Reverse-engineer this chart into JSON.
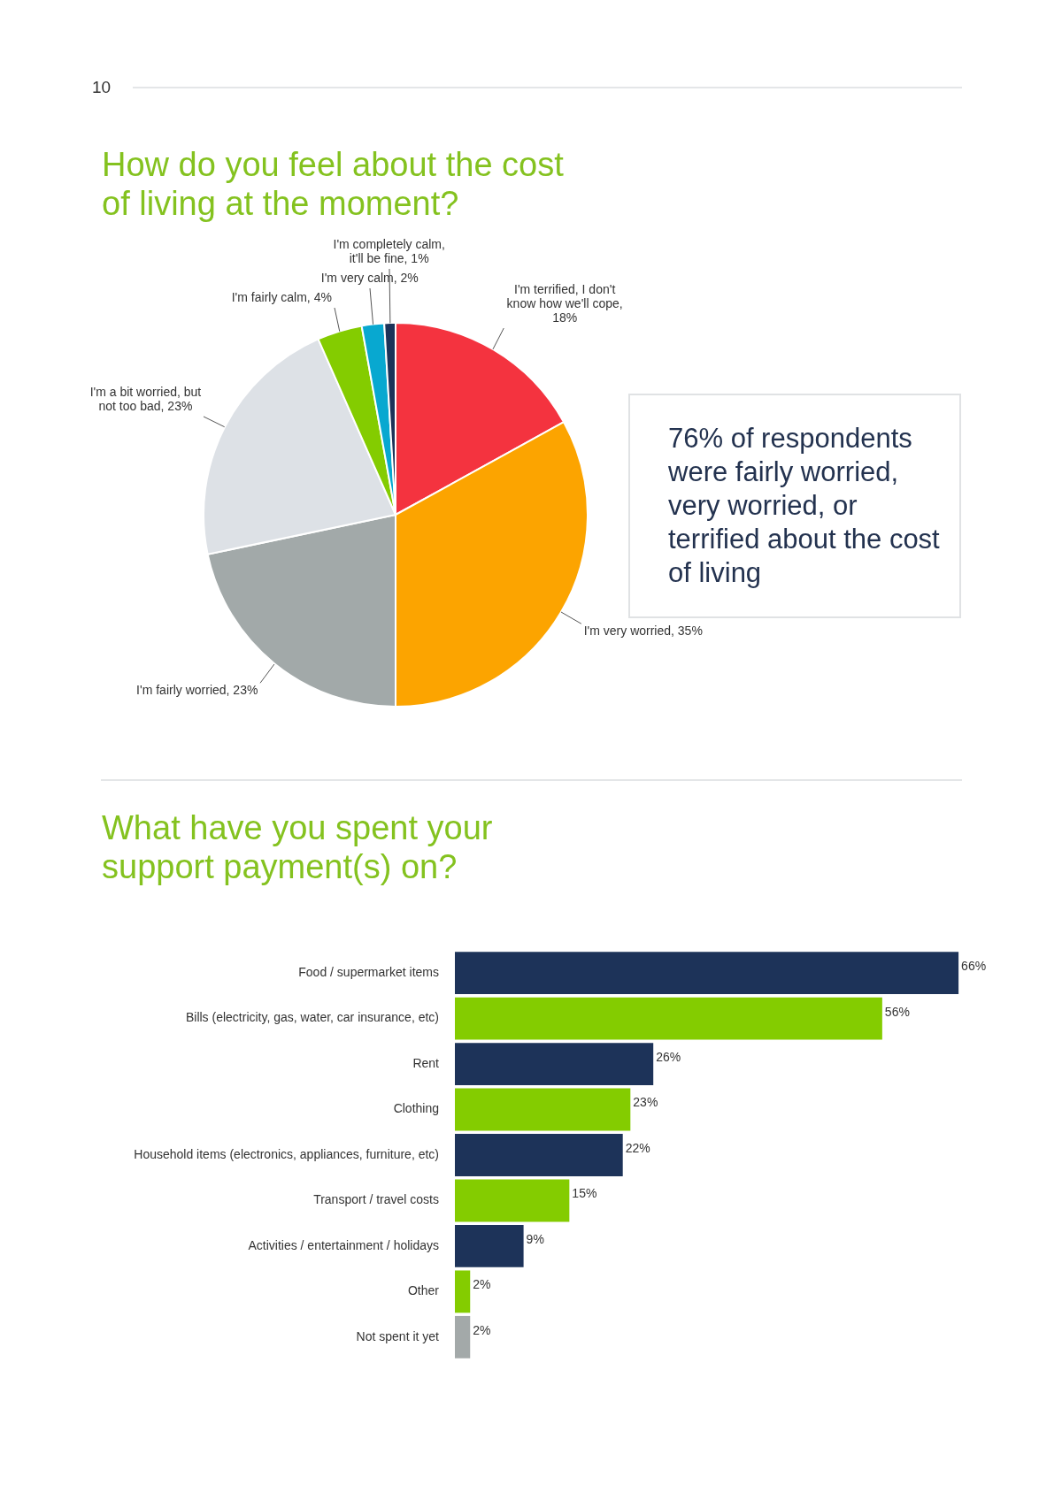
{
  "chart_data": [
    {
      "type": "pie",
      "title": "How do you feel about the cost of living at the moment?",
      "categories": [
        "I'm terrified, I don't know how we'll cope, 18%",
        "I'm very worried, 35%",
        "I'm fairly worried, 23%",
        "I'm a bit worried, but not too bad, 23%",
        "I'm fairly calm, 4%",
        "I'm very calm, 2%",
        "I'm completely calm, it'll be fine, 1%"
      ],
      "values": [
        18,
        35,
        23,
        23,
        4,
        2,
        1
      ],
      "colors": [
        "#f4333f",
        "#fca400",
        "#a2a9a9",
        "#dde1e6",
        "#84cc00",
        "#08a8d0",
        "#1d3359"
      ],
      "annotations": [
        "10",
        "76% of respondents were fairly worried, very worried, or terrified about the cost of living"
      ]
    },
    {
      "type": "bar",
      "orientation": "horizontal",
      "title": "What have you spent your support payment(s) on?",
      "categories": [
        "Food / supermarket items",
        "Bills (electricity, gas, water, car insurance, etc)",
        "Rent",
        "Clothing",
        "Household items (electronics, appliances, furniture, etc)",
        "Transport / travel costs",
        "Activities / entertainment / holidays",
        "Other",
        "Not spent it yet"
      ],
      "values": [
        66,
        56,
        26,
        23,
        22,
        15,
        9,
        2,
        2
      ],
      "value_labels": [
        "66%",
        "56%",
        "26%",
        "23%",
        "22%",
        "15%",
        "9%",
        "2%",
        "2%"
      ],
      "colors": [
        "#1d3359",
        "#84cc00",
        "#1d3359",
        "#84cc00",
        "#1d3359",
        "#84cc00",
        "#1d3359",
        "#84cc00",
        "#a3a9a9"
      ]
    }
  ]
}
